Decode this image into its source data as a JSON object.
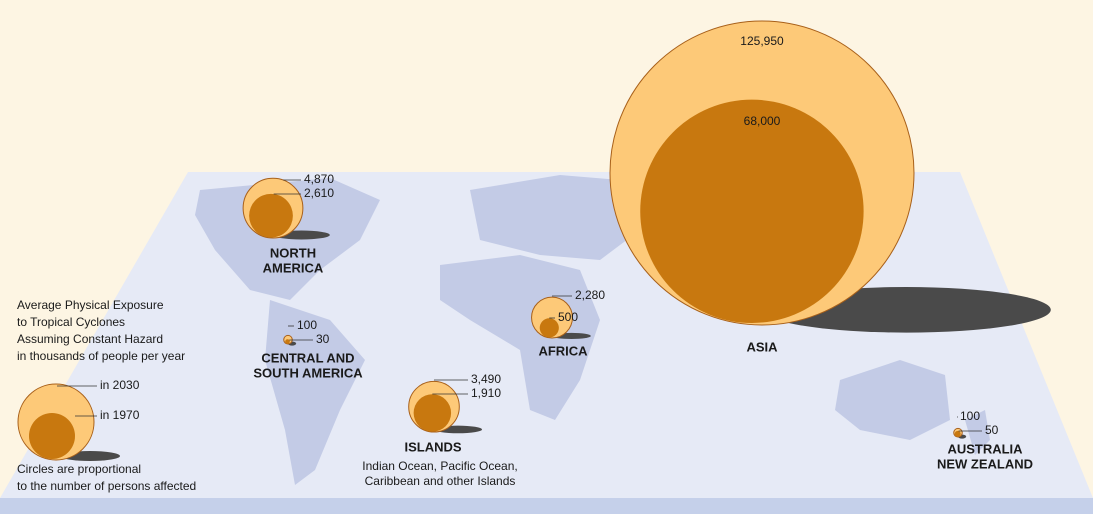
{
  "legend": {
    "title_lines": [
      "Average Physical Exposure",
      "to Tropical Cyclones",
      "Assuming Constant Hazard",
      "in thousands of people per year"
    ],
    "label_2030": "in 2030",
    "label_1970": "in 1970",
    "note_lines": [
      "Circles are proportional",
      "to the number of persons affected"
    ]
  },
  "regions": [
    {
      "name_lines": [
        "NORTH",
        "AMERICA"
      ],
      "values": [
        4870,
        2610
      ],
      "value_labels": [
        "4,870",
        "2,610"
      ]
    },
    {
      "name_lines": [
        "ASIA"
      ],
      "values": [
        125950,
        68000
      ],
      "value_labels": [
        "125,950",
        "68,000"
      ]
    },
    {
      "name_lines": [
        "AFRICA"
      ],
      "values": [
        2280,
        500
      ],
      "value_labels": [
        "2,280",
        "500"
      ]
    },
    {
      "name_lines": [
        "CENTRAL AND",
        "SOUTH AMERICA"
      ],
      "values": [
        100,
        30
      ],
      "value_labels": [
        "100",
        "30"
      ]
    },
    {
      "name_lines": [
        "ISLANDS"
      ],
      "subtitle_lines": [
        "Indian Ocean, Pacific Ocean,",
        "Caribbean and other Islands"
      ],
      "values": [
        3490,
        1910
      ],
      "value_labels": [
        "3,490",
        "1,910"
      ]
    },
    {
      "name_lines": [
        "AUSTRALIA",
        "NEW ZEALAND"
      ],
      "values": [
        100,
        50
      ],
      "value_labels": [
        "100",
        "50"
      ]
    }
  ]
}
